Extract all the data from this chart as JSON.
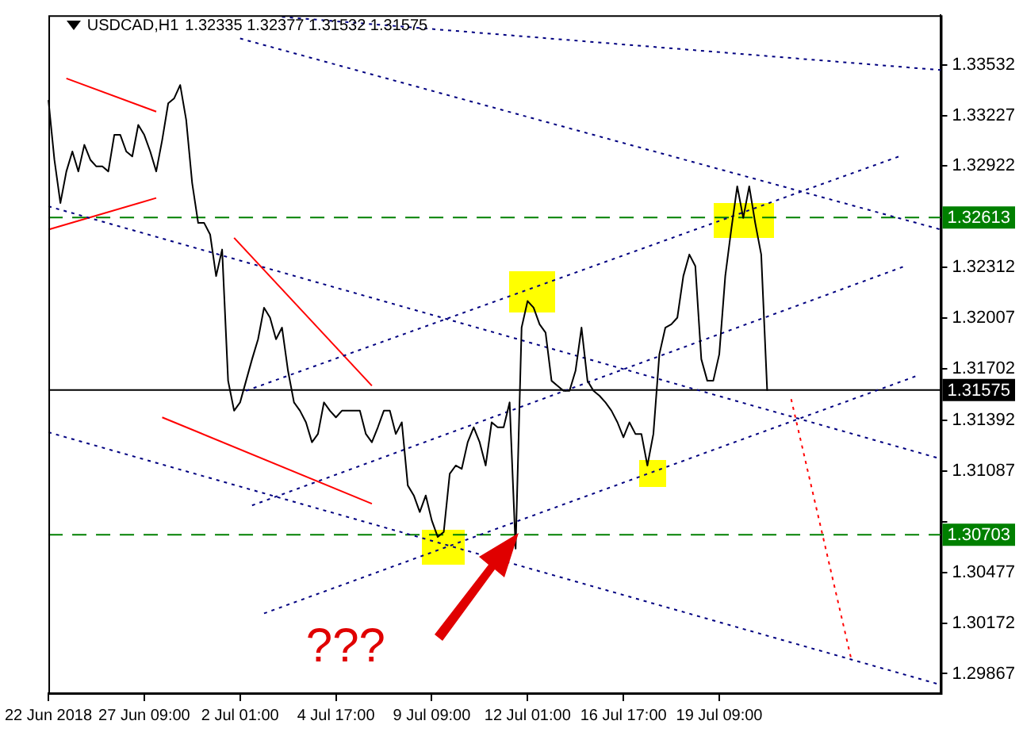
{
  "chart_data": {
    "type": "line",
    "title": "USDCAD,H1",
    "subtitle": "1.32335 1.32377 1.31532 1.31575",
    "categories": [
      "22 Jun 2018",
      null,
      null,
      null,
      null,
      null,
      null,
      null,
      null,
      null,
      null,
      null,
      null,
      null,
      null,
      null,
      "27 Jun 09:00",
      null,
      null,
      null,
      null,
      null,
      null,
      null,
      null,
      null,
      null,
      null,
      null,
      null,
      null,
      null,
      "2 Jul 01:00",
      null,
      null,
      null,
      null,
      null,
      null,
      null,
      null,
      null,
      null,
      null,
      null,
      null,
      null,
      null,
      "4 Jul 17:00",
      null,
      null,
      null,
      null,
      null,
      null,
      null,
      null,
      null,
      null,
      null,
      null,
      null,
      null,
      null,
      "9 Jul 09:00",
      null,
      null,
      null,
      null,
      null,
      null,
      null,
      null,
      null,
      null,
      null,
      null,
      null,
      null,
      null,
      "12 Jul 01:00",
      null,
      null,
      null,
      null,
      null,
      null,
      null,
      null,
      null,
      null,
      null,
      null,
      null,
      null,
      null,
      "16 Jul 17:00",
      null,
      null,
      null,
      null,
      null,
      null,
      null,
      null,
      null,
      null,
      null,
      null,
      null,
      null,
      null,
      "19 Jul 09:00",
      null,
      null,
      null,
      null,
      null,
      null,
      null,
      null,
      null,
      null,
      null,
      null,
      null,
      null,
      null,
      null,
      null,
      null,
      null,
      null,
      null,
      null,
      null,
      null,
      null,
      null,
      null,
      null,
      null,
      null,
      null,
      null,
      null,
      null,
      null,
      null,
      null
    ],
    "series": [
      {
        "color": "#000000",
        "line_style": "solid",
        "values": [
          1.3332,
          1.3296,
          1.327,
          1.3289,
          1.3301,
          1.3289,
          1.3305,
          1.3296,
          1.3292,
          1.3292,
          1.3289,
          1.3311,
          1.3311,
          1.3301,
          1.3298,
          1.3317,
          1.3311,
          1.3301,
          1.3289,
          1.3308,
          1.333,
          1.3333,
          1.3341,
          1.332,
          1.3282,
          1.3258,
          1.3258,
          1.3251,
          1.3226,
          1.3242,
          1.3163,
          1.3145,
          1.315,
          1.3163,
          1.3176,
          1.3188,
          1.3207,
          1.3201,
          1.3188,
          1.3195,
          1.3169,
          1.315,
          1.3145,
          1.3138,
          1.3126,
          1.3131,
          1.315,
          1.3145,
          1.3141,
          1.3145,
          1.3145,
          1.3145,
          1.3145,
          1.3131,
          1.3126,
          1.3135,
          1.3145,
          1.3145,
          1.3131,
          1.3138,
          1.31,
          1.3094,
          1.3084,
          1.3094,
          1.3079,
          1.3069,
          1.3072,
          1.3107,
          1.3112,
          1.311,
          1.3126,
          1.3135,
          1.3126,
          1.3112,
          1.3138,
          1.3135,
          1.3135,
          1.315,
          1.3062,
          1.3195,
          1.3211,
          1.3207,
          1.3197,
          1.3192,
          1.3163,
          1.316,
          1.3157,
          1.3157,
          1.3169,
          1.3195,
          1.3163,
          1.3157,
          1.3154,
          1.315,
          1.3145,
          1.3138,
          1.3129,
          1.3138,
          1.3131,
          1.3131,
          1.3112,
          1.3131,
          1.3179,
          1.3195,
          1.3197,
          1.3201,
          1.3226,
          1.3239,
          1.3232,
          1.3176,
          1.3163,
          1.3163,
          1.3179,
          1.3226,
          1.3254,
          1.328,
          1.3261,
          1.328,
          1.3258,
          1.3239,
          1.3157,
          null,
          null,
          null,
          null,
          null,
          null,
          null,
          null,
          null,
          null,
          null,
          null,
          null,
          null,
          null,
          null,
          null,
          null,
          null,
          null,
          null,
          null,
          null,
          null,
          null,
          null,
          null,
          null,
          null
        ]
      },
      {
        "type": "line",
        "color": "#000080",
        "line_style": "dotted",
        "values": [
          null,
          null,
          null,
          null,
          null,
          null,
          null,
          null,
          null,
          null,
          null,
          null,
          null,
          null,
          null,
          null,
          null,
          null,
          null,
          null,
          null,
          null,
          null,
          null,
          null,
          null,
          null,
          null,
          null,
          null,
          null,
          null,
          null,
          null,
          null,
          null,
          null,
          null,
          null,
          1.3382,
          null,
          null,
          null,
          null,
          null,
          null,
          null,
          null,
          null,
          null,
          null,
          null,
          null,
          null,
          null,
          null,
          null,
          null,
          null,
          null,
          null,
          null,
          null,
          null,
          null,
          null,
          null,
          null,
          null,
          null,
          null,
          null,
          null,
          null,
          null,
          null,
          null,
          null,
          null,
          null,
          null,
          null,
          null,
          null,
          null,
          null,
          null,
          null,
          null,
          null,
          null,
          null,
          null,
          null,
          null,
          null,
          null,
          null,
          null,
          null,
          null,
          null,
          null,
          null,
          null,
          null,
          null,
          null,
          null,
          null,
          null,
          null,
          null,
          null,
          null,
          null,
          null,
          null,
          null,
          null,
          null,
          null,
          null,
          null,
          null,
          null,
          null,
          null,
          null,
          null,
          null,
          null,
          null,
          null,
          null,
          null,
          null,
          null,
          null,
          null,
          null,
          null,
          null,
          null,
          null,
          null,
          null,
          null,
          null,
          1.335
        ]
      },
      {
        "type": "line",
        "color": "#000080",
        "line_style": "dotted",
        "values": [
          null,
          null,
          null,
          null,
          null,
          null,
          null,
          null,
          null,
          null,
          null,
          null,
          null,
          null,
          null,
          null,
          null,
          null,
          null,
          null,
          null,
          null,
          null,
          null,
          null,
          null,
          null,
          null,
          null,
          null,
          null,
          null,
          1.3369,
          null,
          null,
          null,
          null,
          null,
          null,
          null,
          null,
          null,
          null,
          null,
          null,
          null,
          null,
          null,
          null,
          null,
          null,
          null,
          null,
          null,
          null,
          null,
          null,
          null,
          null,
          null,
          null,
          null,
          null,
          null,
          null,
          null,
          null,
          null,
          null,
          null,
          null,
          null,
          null,
          null,
          null,
          null,
          null,
          null,
          null,
          null,
          null,
          null,
          null,
          null,
          null,
          null,
          null,
          null,
          null,
          null,
          null,
          null,
          null,
          null,
          null,
          null,
          null,
          null,
          null,
          null,
          null,
          null,
          null,
          null,
          null,
          null,
          null,
          null,
          null,
          null,
          null,
          null,
          null,
          null,
          null,
          null,
          null,
          null,
          null,
          null,
          null,
          null,
          null,
          null,
          null,
          null,
          null,
          null,
          null,
          null,
          null,
          null,
          null,
          null,
          null,
          null,
          null,
          null,
          null,
          null,
          null,
          null,
          null,
          null,
          null,
          null,
          null,
          null,
          null,
          1.3254
        ]
      },
      {
        "type": "line",
        "color": "#000080",
        "line_style": "dotted",
        "values": [
          1.3268,
          null,
          null,
          null,
          null,
          null,
          null,
          null,
          null,
          null,
          null,
          null,
          null,
          null,
          null,
          null,
          null,
          null,
          null,
          null,
          null,
          null,
          null,
          null,
          null,
          null,
          null,
          null,
          null,
          null,
          null,
          null,
          null,
          null,
          null,
          null,
          null,
          null,
          null,
          null,
          null,
          null,
          null,
          null,
          null,
          null,
          null,
          null,
          null,
          null,
          null,
          null,
          null,
          null,
          null,
          null,
          null,
          null,
          null,
          null,
          null,
          null,
          null,
          null,
          null,
          null,
          null,
          null,
          null,
          null,
          null,
          null,
          null,
          null,
          null,
          null,
          null,
          null,
          null,
          null,
          null,
          null,
          null,
          null,
          null,
          null,
          null,
          null,
          null,
          null,
          null,
          null,
          null,
          null,
          null,
          null,
          null,
          null,
          null,
          null,
          null,
          null,
          null,
          null,
          null,
          null,
          null,
          null,
          null,
          null,
          null,
          null,
          null,
          null,
          null,
          null,
          null,
          null,
          null,
          null,
          null,
          null,
          null,
          null,
          null,
          null,
          null,
          null,
          null,
          null,
          null,
          null,
          null,
          null,
          null,
          null,
          null,
          null,
          null,
          null,
          null,
          null,
          null,
          null,
          null,
          null,
          null,
          null,
          null,
          1.3116
        ]
      },
      {
        "type": "line",
        "color": "#000080",
        "line_style": "dotted",
        "values": [
          1.3132,
          null,
          null,
          null,
          null,
          null,
          null,
          null,
          null,
          null,
          null,
          null,
          null,
          null,
          null,
          null,
          null,
          null,
          null,
          null,
          null,
          null,
          null,
          null,
          null,
          null,
          null,
          null,
          null,
          null,
          null,
          null,
          null,
          null,
          null,
          null,
          null,
          null,
          null,
          null,
          null,
          null,
          null,
          null,
          null,
          null,
          null,
          null,
          null,
          null,
          null,
          null,
          null,
          null,
          null,
          null,
          null,
          null,
          null,
          null,
          null,
          null,
          null,
          null,
          null,
          null,
          null,
          null,
          null,
          null,
          null,
          null,
          null,
          null,
          null,
          null,
          null,
          null,
          null,
          null,
          null,
          null,
          null,
          null,
          null,
          null,
          null,
          null,
          null,
          null,
          null,
          null,
          null,
          null,
          null,
          null,
          null,
          null,
          null,
          null,
          null,
          null,
          null,
          null,
          null,
          null,
          null,
          null,
          null,
          null,
          null,
          null,
          null,
          null,
          null,
          null,
          null,
          null,
          null,
          null,
          null,
          null,
          null,
          null,
          null,
          null,
          null,
          null,
          null,
          null,
          null,
          null,
          null,
          null,
          null,
          null,
          null,
          null,
          null,
          null,
          null,
          null,
          null,
          null,
          null,
          null,
          null,
          null,
          null,
          1.298
        ]
      },
      {
        "type": "line",
        "color": "#000080",
        "line_style": "dotted",
        "values": [
          null,
          null,
          null,
          null,
          null,
          null,
          null,
          null,
          null,
          null,
          null,
          null,
          null,
          null,
          null,
          null,
          null,
          null,
          null,
          null,
          null,
          null,
          null,
          null,
          null,
          null,
          null,
          null,
          null,
          null,
          null,
          null,
          null,
          1.3157,
          null,
          null,
          null,
          null,
          null,
          null,
          null,
          null,
          null,
          null,
          null,
          null,
          null,
          null,
          null,
          null,
          null,
          null,
          null,
          null,
          null,
          null,
          null,
          null,
          null,
          null,
          null,
          null,
          null,
          null,
          null,
          null,
          null,
          null,
          null,
          null,
          null,
          null,
          null,
          null,
          null,
          null,
          null,
          null,
          null,
          null,
          null,
          null,
          null,
          null,
          null,
          null,
          null,
          null,
          null,
          null,
          null,
          null,
          null,
          null,
          null,
          null,
          null,
          null,
          null,
          null,
          null,
          null,
          null,
          null,
          null,
          null,
          null,
          null,
          null,
          null,
          null,
          null,
          null,
          null,
          null,
          null,
          null,
          null,
          null,
          null,
          null,
          null,
          null,
          null,
          null,
          null,
          null,
          null,
          null,
          null,
          null,
          null,
          null,
          null,
          null,
          null,
          null,
          null,
          null,
          null,
          null,
          null,
          1.3298,
          null,
          null,
          null,
          null,
          null,
          null,
          null
        ]
      },
      {
        "type": "line",
        "color": "#000080",
        "line_style": "dotted",
        "values": [
          null,
          null,
          null,
          null,
          null,
          null,
          null,
          null,
          null,
          null,
          null,
          null,
          null,
          null,
          null,
          null,
          null,
          null,
          null,
          null,
          null,
          null,
          null,
          null,
          null,
          null,
          null,
          null,
          null,
          null,
          null,
          null,
          null,
          null,
          1.3088,
          null,
          null,
          null,
          null,
          null,
          null,
          null,
          null,
          null,
          null,
          null,
          null,
          null,
          null,
          null,
          null,
          null,
          null,
          null,
          null,
          null,
          null,
          null,
          null,
          null,
          null,
          null,
          null,
          null,
          null,
          null,
          null,
          null,
          null,
          null,
          null,
          null,
          null,
          null,
          null,
          null,
          null,
          null,
          null,
          null,
          null,
          null,
          null,
          null,
          null,
          null,
          null,
          null,
          null,
          null,
          null,
          null,
          null,
          null,
          null,
          null,
          null,
          null,
          null,
          null,
          null,
          null,
          null,
          null,
          null,
          null,
          null,
          null,
          null,
          null,
          null,
          null,
          null,
          null,
          null,
          null,
          null,
          null,
          null,
          null,
          null,
          null,
          null,
          null,
          null,
          null,
          null,
          null,
          null,
          null,
          null,
          null,
          null,
          null,
          null,
          null,
          null,
          null,
          null,
          null,
          null,
          null,
          null,
          1.3232,
          null,
          null,
          null,
          null,
          null,
          null
        ]
      },
      {
        "type": "line",
        "color": "#000080",
        "line_style": "dotted",
        "values": [
          null,
          null,
          null,
          null,
          null,
          null,
          null,
          null,
          null,
          null,
          null,
          null,
          null,
          null,
          null,
          null,
          null,
          null,
          null,
          null,
          null,
          null,
          null,
          null,
          null,
          null,
          null,
          null,
          null,
          null,
          null,
          null,
          null,
          null,
          null,
          null,
          1.3023,
          null,
          null,
          null,
          null,
          null,
          null,
          null,
          null,
          null,
          null,
          null,
          null,
          null,
          null,
          null,
          null,
          null,
          null,
          null,
          null,
          null,
          null,
          null,
          null,
          null,
          null,
          null,
          null,
          null,
          null,
          null,
          null,
          null,
          null,
          null,
          null,
          null,
          null,
          null,
          null,
          null,
          null,
          null,
          null,
          null,
          null,
          null,
          null,
          null,
          null,
          null,
          null,
          null,
          null,
          null,
          null,
          null,
          null,
          null,
          null,
          null,
          null,
          null,
          null,
          null,
          null,
          null,
          null,
          null,
          null,
          null,
          null,
          null,
          null,
          null,
          null,
          null,
          null,
          null,
          null,
          null,
          null,
          null,
          null,
          null,
          null,
          null,
          null,
          null,
          null,
          null,
          null,
          null,
          null,
          null,
          null,
          null,
          null,
          null,
          null,
          null,
          null,
          null,
          null,
          null,
          null,
          null,
          null,
          1.3166,
          null,
          null,
          null,
          null
        ]
      },
      {
        "type": "line",
        "color": "#ff0000",
        "line_style": "solid",
        "values": [
          null,
          null,
          null,
          1.3345,
          null,
          null,
          null,
          null,
          null,
          null,
          null,
          null,
          null,
          null,
          null,
          null,
          null,
          null,
          1.3325,
          null,
          null,
          null,
          null,
          null,
          null,
          null,
          null,
          null,
          null,
          null,
          null,
          null,
          null,
          null,
          null,
          null,
          null,
          null,
          null,
          null,
          null,
          null,
          null,
          null,
          null,
          null,
          null,
          null,
          null,
          null,
          null,
          null,
          null,
          null,
          null,
          null,
          null,
          null,
          null,
          null,
          null,
          null,
          null,
          null,
          null,
          null,
          null,
          null,
          null,
          null,
          null,
          null,
          null,
          null,
          null,
          null,
          null,
          null,
          null,
          null,
          null,
          null,
          null,
          null,
          null,
          null,
          null,
          null,
          null,
          null,
          null,
          null,
          null,
          null,
          null,
          null,
          null,
          null,
          null,
          null,
          null,
          null,
          null,
          null,
          null,
          null,
          null,
          null,
          null,
          null,
          null,
          null,
          null,
          null,
          null,
          null,
          null,
          null,
          null,
          null,
          null,
          null,
          null,
          null,
          null,
          null,
          null,
          null,
          null,
          null,
          null,
          null,
          null,
          null,
          null,
          null,
          null,
          null,
          null,
          null,
          null,
          null,
          null,
          null,
          null,
          null,
          null,
          null,
          null,
          null
        ]
      },
      {
        "type": "line",
        "color": "#ff0000",
        "line_style": "solid",
        "values": [
          1.3254,
          null,
          null,
          null,
          null,
          null,
          null,
          null,
          null,
          null,
          null,
          null,
          null,
          null,
          null,
          null,
          null,
          null,
          1.3273,
          null,
          null,
          null,
          null,
          null,
          null,
          null,
          null,
          null,
          null,
          null,
          null,
          null,
          null,
          null,
          null,
          null,
          null,
          null,
          null,
          null,
          null,
          null,
          null,
          null,
          null,
          null,
          null,
          null,
          null,
          null,
          null,
          null,
          null,
          null,
          null,
          null,
          null,
          null,
          null,
          null,
          null,
          null,
          null,
          null,
          null,
          null,
          null,
          null,
          null,
          null,
          null,
          null,
          null,
          null,
          null,
          null,
          null,
          null,
          null,
          null,
          null,
          null,
          null,
          null,
          null,
          null,
          null,
          null,
          null,
          null,
          null,
          null,
          null,
          null,
          null,
          null,
          null,
          null,
          null,
          null,
          null,
          null,
          null,
          null,
          null,
          null,
          null,
          null,
          null,
          null,
          null,
          null,
          null,
          null,
          null,
          null,
          null,
          null,
          null,
          null,
          null,
          null,
          null,
          null,
          null,
          null,
          null,
          null,
          null,
          null,
          null,
          null,
          null,
          null,
          null,
          null,
          null,
          null,
          null,
          null,
          null,
          null,
          null,
          null,
          null,
          null,
          null,
          null,
          null,
          null
        ]
      },
      {
        "type": "line",
        "color": "#ff0000",
        "line_style": "solid",
        "values": [
          null,
          null,
          null,
          null,
          null,
          null,
          null,
          null,
          null,
          null,
          null,
          null,
          null,
          null,
          null,
          null,
          null,
          null,
          null,
          null,
          null,
          null,
          null,
          null,
          null,
          null,
          null,
          null,
          null,
          null,
          null,
          1.3249,
          null,
          null,
          null,
          null,
          null,
          null,
          null,
          null,
          null,
          null,
          null,
          null,
          null,
          null,
          null,
          null,
          null,
          null,
          null,
          null,
          null,
          null,
          1.316,
          null,
          null,
          null,
          null,
          null,
          null,
          null,
          null,
          null,
          null,
          null,
          null,
          null,
          null,
          null,
          null,
          null,
          null,
          null,
          null,
          null,
          null,
          null,
          null,
          null,
          null,
          null,
          null,
          null,
          null,
          null,
          null,
          null,
          null,
          null,
          null,
          null,
          null,
          null,
          null,
          null,
          null,
          null,
          null,
          null,
          null,
          null,
          null,
          null,
          null,
          null,
          null,
          null,
          null,
          null,
          null,
          null,
          null,
          null,
          null,
          null,
          null,
          null,
          null,
          null,
          null,
          null,
          null,
          null,
          null,
          null,
          null,
          null,
          null,
          null,
          null,
          null,
          null,
          null,
          null,
          null,
          null,
          null,
          null,
          null,
          null,
          null,
          null,
          null,
          null,
          null,
          null,
          null,
          null,
          null
        ]
      },
      {
        "type": "line",
        "color": "#ff0000",
        "line_style": "solid",
        "values": [
          null,
          null,
          null,
          null,
          null,
          null,
          null,
          null,
          null,
          null,
          null,
          null,
          null,
          null,
          null,
          null,
          null,
          null,
          null,
          1.3141,
          null,
          null,
          null,
          null,
          null,
          null,
          null,
          null,
          null,
          null,
          null,
          null,
          null,
          null,
          null,
          null,
          null,
          null,
          null,
          null,
          null,
          null,
          null,
          null,
          null,
          null,
          null,
          null,
          null,
          null,
          null,
          null,
          null,
          null,
          1.3089,
          null,
          null,
          null,
          null,
          null,
          null,
          null,
          null,
          null,
          null,
          null,
          null,
          null,
          null,
          null,
          null,
          null,
          null,
          null,
          null,
          null,
          null,
          null,
          null,
          null,
          null,
          null,
          null,
          null,
          null,
          null,
          null,
          null,
          null,
          null,
          null,
          null,
          null,
          null,
          null,
          null,
          null,
          null,
          null,
          null,
          null,
          null,
          null,
          null,
          null,
          null,
          null,
          null,
          null,
          null,
          null,
          null,
          null,
          null,
          null,
          null,
          null,
          null,
          null,
          null,
          null,
          null,
          null,
          null,
          null,
          null,
          null,
          null,
          null,
          null,
          null,
          null,
          null,
          null,
          null,
          null,
          null,
          null,
          null,
          null,
          null,
          null,
          null,
          null,
          null,
          null,
          null,
          null,
          null,
          null
        ]
      },
      {
        "type": "line",
        "color": "#ff0000",
        "line_style": "dotted",
        "values": [
          null,
          null,
          null,
          null,
          null,
          null,
          null,
          null,
          null,
          null,
          null,
          null,
          null,
          null,
          null,
          null,
          null,
          null,
          null,
          null,
          null,
          null,
          null,
          null,
          null,
          null,
          null,
          null,
          null,
          null,
          null,
          null,
          null,
          null,
          null,
          null,
          null,
          null,
          null,
          null,
          null,
          null,
          null,
          null,
          null,
          null,
          null,
          null,
          null,
          null,
          null,
          null,
          null,
          null,
          null,
          null,
          null,
          null,
          null,
          null,
          null,
          null,
          null,
          null,
          null,
          null,
          null,
          null,
          null,
          null,
          null,
          null,
          null,
          null,
          null,
          null,
          null,
          null,
          null,
          null,
          null,
          null,
          null,
          null,
          null,
          null,
          null,
          null,
          null,
          null,
          null,
          null,
          null,
          null,
          null,
          null,
          null,
          null,
          null,
          null,
          null,
          null,
          null,
          null,
          null,
          null,
          null,
          null,
          null,
          null,
          null,
          null,
          null,
          null,
          null,
          null,
          null,
          null,
          null,
          null,
          null,
          null,
          null,
          null,
          1.3152,
          null,
          null,
          null,
          null,
          null,
          null,
          null,
          null,
          null,
          1.2996,
          null,
          null,
          null,
          null,
          null,
          null,
          null,
          null,
          null,
          null,
          null,
          null,
          null,
          null,
          null
        ]
      }
    ],
    "ylim": [
      1.2975,
      1.3383
    ],
    "yticks": [
      1.29867,
      1.30172,
      1.30477,
      {
        "value": 1.30782,
        "label": null
      },
      1.31087,
      1.31392,
      1.31702,
      1.32007,
      1.32312,
      1.32922,
      1.33227,
      1.33532
    ],
    "ref_lines": [
      {
        "axis": "y",
        "value": 1.32613,
        "label": "1.32613",
        "color": "#008000",
        "line_style": "dashed"
      },
      {
        "axis": "y",
        "value": 1.30703,
        "label": "1.30703",
        "color": "#008000",
        "line_style": "dashed"
      },
      {
        "axis": "y",
        "value": 1.31575,
        "label": "1.31575",
        "color": "#000000",
        "line_style": "solid"
      }
    ],
    "annotations": [
      "???"
    ],
    "grid": false,
    "legend": false,
    "marker": "none"
  }
}
